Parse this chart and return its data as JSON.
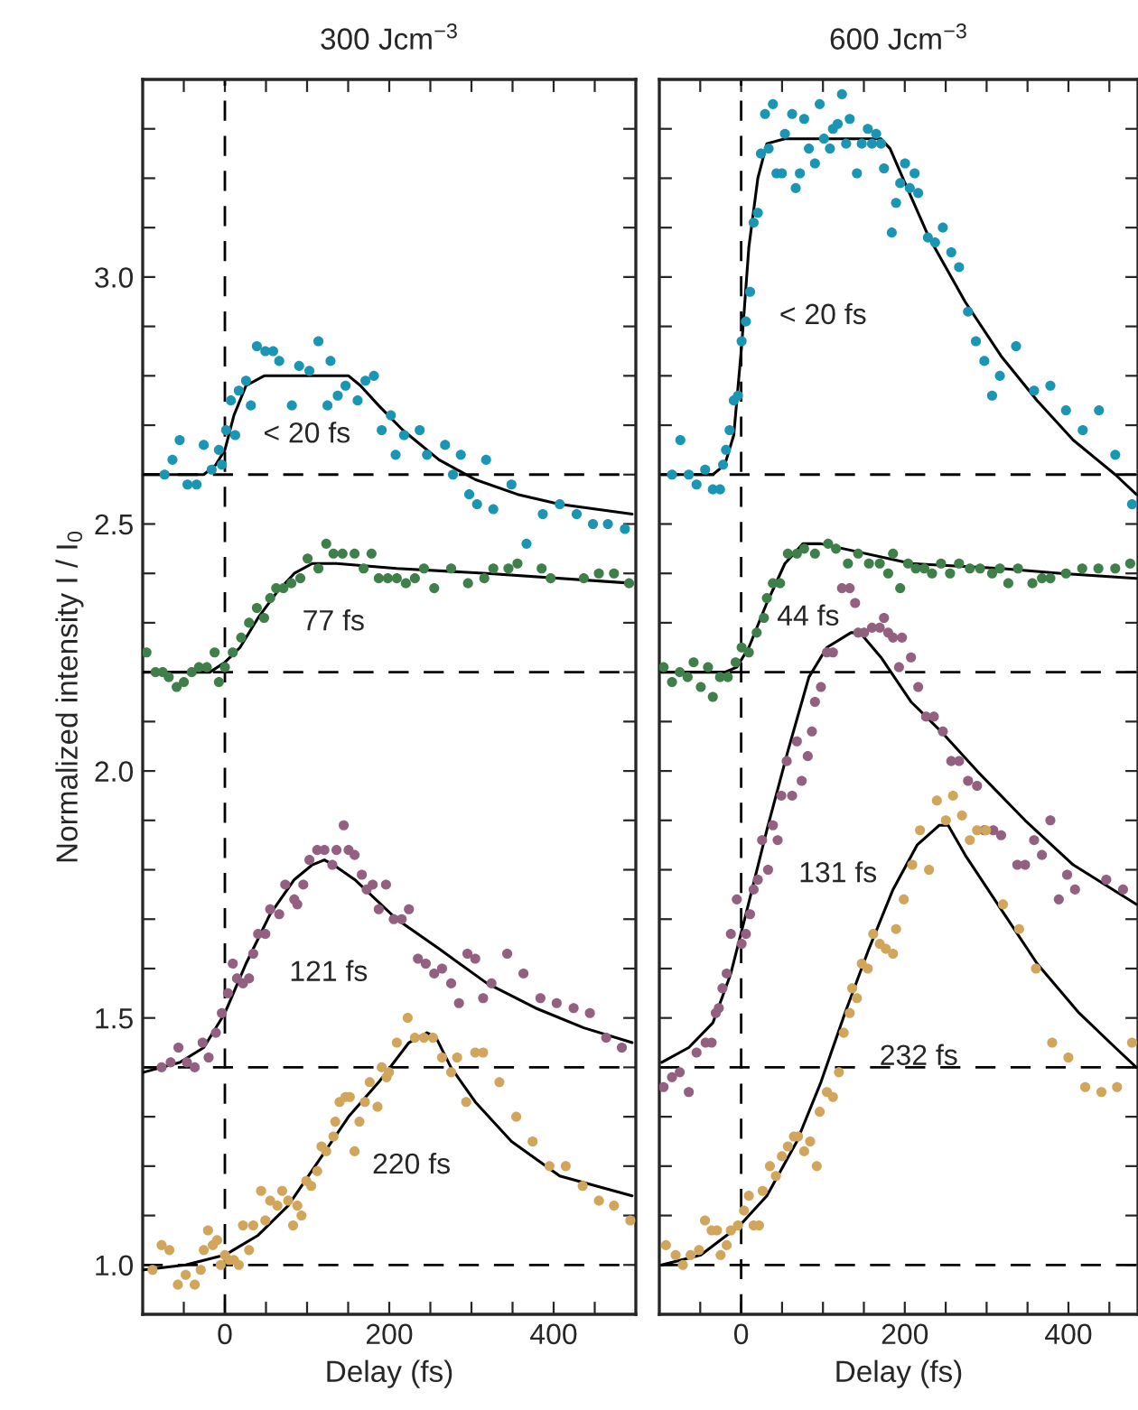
{
  "chart_data": [
    {
      "type": "scatter",
      "title": "300 Jcm$^{−3}$",
      "xlabel": "Delay (fs)",
      "ylabel": "Normalized intensity I / I$_{0}$",
      "marker": "circle",
      "grid": false,
      "legend": false,
      "xlim": [
        -100,
        500
      ],
      "ylim": [
        0.9,
        3.4
      ],
      "xticks": [
        {
          "value": -50,
          "label": null
        },
        0,
        {
          "value": 50,
          "label": null
        },
        {
          "value": 100,
          "label": null
        },
        {
          "value": 150,
          "label": null
        },
        200,
        {
          "value": 250,
          "label": null
        },
        {
          "value": 300,
          "label": null
        },
        {
          "value": 350,
          "label": null
        },
        400,
        {
          "value": 450,
          "label": null
        }
      ],
      "yticks": [
        {
          "value": 1.0,
          "label": "1.0"
        },
        {
          "value": 1.1,
          "label": null
        },
        {
          "value": 1.2,
          "label": null
        },
        {
          "value": 1.3,
          "label": null
        },
        {
          "value": 1.4,
          "label": null
        },
        {
          "value": 1.5,
          "label": "1.5"
        },
        {
          "value": 1.6,
          "label": null
        },
        {
          "value": 1.7,
          "label": null
        },
        {
          "value": 1.8,
          "label": null
        },
        {
          "value": 1.9,
          "label": null
        },
        {
          "value": 2.0,
          "label": "2.0"
        },
        {
          "value": 2.1,
          "label": null
        },
        {
          "value": 2.2,
          "label": null
        },
        {
          "value": 2.3,
          "label": null
        },
        {
          "value": 2.4,
          "label": null
        },
        {
          "value": 2.5,
          "label": "2.5"
        },
        {
          "value": 2.6,
          "label": null
        },
        {
          "value": 2.7,
          "label": null
        },
        {
          "value": 2.8,
          "label": null
        },
        {
          "value": 2.9,
          "label": null
        },
        {
          "value": 3.0,
          "label": "3.0"
        },
        {
          "value": 3.1,
          "label": null
        },
        {
          "value": 3.2,
          "label": null
        },
        {
          "value": 3.3,
          "label": null
        }
      ],
      "ref_lines": [
        {
          "axis": "x",
          "value": 0,
          "color": "#000000",
          "line_style": "dashed"
        },
        {
          "axis": "y",
          "value": 2.6,
          "color": "#000000",
          "line_style": "dashed"
        },
        {
          "axis": "y",
          "value": 2.2,
          "color": "#000000",
          "line_style": "dashed"
        },
        {
          "axis": "y",
          "value": 1.4,
          "color": "#000000",
          "line_style": "dashed"
        },
        {
          "axis": "y",
          "value": 1.0,
          "color": "#000000",
          "line_style": "dashed"
        }
      ],
      "annotations": [
        "< 20 fs",
        "77 fs",
        "121 fs",
        "220 fs"
      ],
      "series": [
        {
          "type": "scatter",
          "color": "#1a95b4",
          "x": [
            -73.4,
            -63.8,
            -55,
            -45.5,
            -34.5,
            -25.7,
            -16.1,
            -7.3,
            -3.7,
            1.5,
            7.3,
            12.5,
            16.9,
            25.7,
            31.6,
            38.9,
            49.2,
            58.7,
            66.1,
            81.5,
            90.3,
            102.8,
            113.8,
            124.8,
            128.5,
            137.3,
            146.8,
            161.5,
            171,
            181.3,
            190.8,
            201.9,
            207.7,
            218,
            237,
            245.9,
            267.9,
            277.5,
            287,
            297.3,
            306.8,
            317.8,
            326.6,
            348.7,
            367,
            386.8,
            407.4,
            428,
            447.8,
            466,
            486.7
          ],
          "values": [
            2.6,
            2.63,
            2.67,
            2.58,
            2.58,
            2.66,
            2.61,
            2.65,
            2.62,
            2.69,
            2.75,
            2.68,
            2.77,
            2.79,
            2.74,
            2.86,
            2.85,
            2.85,
            2.83,
            2.74,
            2.82,
            2.81,
            2.87,
            2.74,
            2.83,
            2.76,
            2.78,
            2.75,
            2.79,
            2.8,
            2.69,
            2.72,
            2.64,
            2.68,
            2.69,
            2.64,
            2.66,
            2.6,
            2.64,
            2.56,
            2.54,
            2.63,
            2.53,
            2.58,
            2.46,
            2.52,
            2.54,
            2.52,
            2.5,
            2.5,
            2.49
          ]
        },
        {
          "type": "line",
          "color": "#000000",
          "marker": "none",
          "x": [
            -100,
            -25.7,
            -11,
            0,
            11,
            25.7,
            47.7,
            99,
            150.5,
            165,
            187,
            216.5,
            260.6,
            304.6,
            356,
            407,
            495.5
          ],
          "values": [
            2.6,
            2.6,
            2.62,
            2.65,
            2.72,
            2.78,
            2.8,
            2.8,
            2.8,
            2.78,
            2.74,
            2.69,
            2.63,
            2.59,
            2.56,
            2.54,
            2.52
          ]
        },
        {
          "type": "scatter",
          "color": "#3f7f4a",
          "x": [
            -95.4,
            -84.4,
            -75.6,
            -68.3,
            -58.7,
            -49.9,
            -40.4,
            -31.6,
            -22,
            -12.5,
            -7.3,
            0,
            9.6,
            19.8,
            29.4,
            38.9,
            47.7,
            55.1,
            62.4,
            71.2,
            80.8,
            91.8,
            100.6,
            113.8,
            123.3,
            132.1,
            143.1,
            157.8,
            168.8,
            178.4,
            187.2,
            198.2,
            209.2,
            220.2,
            231.2,
            242.2,
            254.7,
            275.3,
            295.8,
            315.6,
            326.6,
            345,
            356,
            385.4,
            396.4,
            436.7,
            455,
            473.4,
            491.8
          ],
          "values": [
            2.24,
            2.2,
            2.2,
            2.19,
            2.17,
            2.18,
            2.2,
            2.21,
            2.21,
            2.24,
            2.18,
            2.21,
            2.24,
            2.27,
            2.3,
            2.33,
            2.31,
            2.35,
            2.37,
            2.37,
            2.38,
            2.39,
            2.43,
            2.41,
            2.46,
            2.44,
            2.44,
            2.44,
            2.41,
            2.44,
            2.39,
            2.39,
            2.39,
            2.38,
            2.39,
            2.41,
            2.37,
            2.41,
            2.38,
            2.39,
            2.41,
            2.41,
            2.42,
            2.41,
            2.39,
            2.39,
            2.4,
            2.4,
            2.38
          ]
        },
        {
          "type": "line",
          "color": "#000000",
          "marker": "none",
          "x": [
            -100,
            -18.3,
            0,
            18.4,
            40.4,
            62.4,
            84.4,
            106.4,
            135.8,
            209,
            319,
            495.5
          ],
          "values": [
            2.2,
            2.2,
            2.22,
            2.25,
            2.31,
            2.36,
            2.4,
            2.42,
            2.42,
            2.41,
            2.4,
            2.38
          ]
        },
        {
          "type": "scatter",
          "color": "#93607f",
          "x": [
            -77,
            -66,
            -56.5,
            -46.2,
            -36.7,
            -27.1,
            -19.8,
            -11,
            -3.7,
            3.7,
            9.6,
            14.7,
            22,
            29.4,
            34.5,
            40.4,
            49.2,
            55.1,
            66.1,
            73.4,
            84.4,
            88.1,
            95.4,
            102.8,
            112.3,
            121.1,
            130.7,
            135.8,
            144.6,
            150.5,
            157.8,
            166.6,
            172.5,
            179.8,
            187.2,
            196,
            205.5,
            215.1,
            223.9,
            234.9,
            244.4,
            254.7,
            264.2,
            275.3,
            284.8,
            295.1,
            304.6,
            314.2,
            324.4,
            343.5,
            363.3,
            383.9,
            403.7,
            424.3,
            444.1,
            463.9,
            483
          ],
          "values": [
            1.4,
            1.41,
            1.44,
            1.41,
            1.4,
            1.45,
            1.42,
            1.47,
            1.51,
            1.55,
            1.61,
            1.58,
            1.57,
            1.58,
            1.63,
            1.67,
            1.67,
            1.72,
            1.71,
            1.77,
            1.74,
            1.73,
            1.77,
            1.82,
            1.84,
            1.84,
            1.81,
            1.84,
            1.89,
            1.84,
            1.83,
            1.79,
            1.76,
            1.77,
            1.72,
            1.77,
            1.7,
            1.7,
            1.72,
            1.62,
            1.61,
            1.59,
            1.6,
            1.57,
            1.53,
            1.63,
            1.62,
            1.54,
            1.57,
            1.63,
            1.59,
            1.54,
            1.53,
            1.52,
            1.51,
            1.46,
            1.44
          ]
        },
        {
          "type": "line",
          "color": "#000000",
          "marker": "none",
          "x": [
            -99,
            -55,
            -25.7,
            0,
            25.7,
            55,
            84.4,
            106.4,
            121,
            132,
            158,
            209,
            260.6,
            319,
            378,
            436.7,
            495.5
          ],
          "values": [
            1.39,
            1.41,
            1.44,
            1.51,
            1.61,
            1.71,
            1.78,
            1.81,
            1.82,
            1.81,
            1.78,
            1.7,
            1.64,
            1.57,
            1.52,
            1.48,
            1.45
          ]
        },
        {
          "type": "scatter",
          "color": "#d1a65c",
          "x": [
            -88,
            -77,
            -67.5,
            -57.2,
            -47.7,
            -36.7,
            -29.4,
            -25.7,
            -20.5,
            -14.7,
            -9.5,
            -5.1,
            0,
            5.1,
            11,
            16.9,
            22,
            29.4,
            34.5,
            44,
            49.2,
            55.1,
            63.9,
            69.7,
            77,
            83,
            88.1,
            93.2,
            99,
            105,
            112.3,
            117.5,
            123.3,
            132.1,
            134.3,
            139.5,
            146.8,
            152,
            157.8,
            163.7,
            170.3,
            176.2,
            185.7,
            190.8,
            196.7,
            199.7,
            209.2,
            222.4,
            231.2,
            242.2,
            253.2,
            264.2,
            275.3,
            282.6,
            293.6,
            304.6,
            314.2,
            334,
            354.5,
            374.4,
            394.9,
            414.7,
            435.3,
            455.1,
            473.4,
            493.3
          ],
          "values": [
            0.99,
            1.04,
            1.03,
            0.96,
            0.98,
            0.96,
            0.99,
            1.03,
            1.07,
            1.04,
            1.05,
            1.0,
            1.02,
            1.01,
            1.01,
            1.0,
            1.08,
            1.03,
            1.08,
            1.15,
            1.09,
            1.13,
            1.12,
            1.15,
            1.13,
            1.08,
            1.12,
            1.1,
            1.17,
            1.16,
            1.19,
            1.24,
            1.23,
            1.26,
            1.29,
            1.33,
            1.34,
            1.34,
            1.23,
            1.29,
            1.33,
            1.37,
            1.32,
            1.4,
            1.38,
            1.39,
            1.45,
            1.5,
            1.46,
            1.46,
            1.46,
            1.42,
            1.39,
            1.42,
            1.33,
            1.43,
            1.43,
            1.37,
            1.3,
            1.25,
            1.2,
            1.2,
            1.16,
            1.13,
            1.12,
            1.09
          ]
        },
        {
          "type": "line",
          "color": "#000000",
          "marker": "none",
          "x": [
            -99,
            -47.7,
            0,
            40.4,
            77,
            113.8,
            150.5,
            187.2,
            223.9,
            245.9,
            257,
            275,
            304.6,
            348.7,
            407.4,
            495.5
          ],
          "values": [
            0.99,
            1.0,
            1.02,
            1.06,
            1.12,
            1.21,
            1.3,
            1.37,
            1.45,
            1.47,
            1.46,
            1.4,
            1.33,
            1.25,
            1.18,
            1.14
          ]
        }
      ]
    },
    {
      "type": "scatter",
      "title": "600 Jcm$^{−3}$",
      "xlabel": "Delay (fs)",
      "marker": "circle",
      "grid": false,
      "legend": false,
      "tick_labels": "x",
      "xlim": [
        -100,
        485
      ],
      "ylim": [
        0.9,
        3.4
      ],
      "xticks": [
        {
          "value": -50,
          "label": null
        },
        0,
        {
          "value": 50,
          "label": null
        },
        {
          "value": 100,
          "label": null
        },
        {
          "value": 150,
          "label": null
        },
        200,
        {
          "value": 250,
          "label": null
        },
        {
          "value": 300,
          "label": null
        },
        {
          "value": 350,
          "label": null
        },
        400,
        {
          "value": 450,
          "label": null
        }
      ],
      "yticks": [
        {
          "value": 1.0,
          "label": null
        },
        {
          "value": 1.1,
          "label": null
        },
        {
          "value": 1.2,
          "label": null
        },
        {
          "value": 1.3,
          "label": null
        },
        {
          "value": 1.4,
          "label": null
        },
        {
          "value": 1.5,
          "label": null
        },
        {
          "value": 1.6,
          "label": null
        },
        {
          "value": 1.7,
          "label": null
        },
        {
          "value": 1.8,
          "label": null
        },
        {
          "value": 1.9,
          "label": null
        },
        {
          "value": 2.0,
          "label": null
        },
        {
          "value": 2.1,
          "label": null
        },
        {
          "value": 2.2,
          "label": null
        },
        {
          "value": 2.3,
          "label": null
        },
        {
          "value": 2.4,
          "label": null
        },
        {
          "value": 2.5,
          "label": null
        },
        {
          "value": 2.6,
          "label": null
        },
        {
          "value": 2.7,
          "label": null
        },
        {
          "value": 2.8,
          "label": null
        },
        {
          "value": 2.9,
          "label": null
        },
        {
          "value": 3.0,
          "label": null
        },
        {
          "value": 3.1,
          "label": null
        },
        {
          "value": 3.2,
          "label": null
        },
        {
          "value": 3.3,
          "label": null
        }
      ],
      "ref_lines": [
        {
          "axis": "x",
          "value": 0,
          "color": "#000000",
          "line_style": "dashed"
        },
        {
          "axis": "y",
          "value": 2.6,
          "color": "#000000",
          "line_style": "dashed"
        },
        {
          "axis": "y",
          "value": 2.2,
          "color": "#000000",
          "line_style": "dashed"
        },
        {
          "axis": "y",
          "value": 1.4,
          "color": "#000000",
          "line_style": "dashed"
        },
        {
          "axis": "y",
          "value": 1.0,
          "color": "#000000",
          "line_style": "dashed"
        }
      ],
      "annotations": [
        "< 20 fs",
        "44 fs",
        "131 fs",
        "232 fs"
      ],
      "series": [
        {
          "type": "scatter",
          "color": "#1a95b4",
          "x": [
            -84.5,
            -74.3,
            -64,
            -54.5,
            -44,
            -34.6,
            -25.8,
            -22.1,
            -18.5,
            -14.1,
            -9,
            -3.8,
            0.6,
            5.8,
            10.9,
            15.3,
            20.4,
            24.1,
            29.2,
            33.6,
            38.8,
            43.2,
            49.8,
            53.5,
            62.3,
            66.7,
            71.8,
            77,
            82.8,
            90.2,
            96,
            101.2,
            108.5,
            112.2,
            118,
            123.2,
            128.3,
            132.7,
            141.5,
            147.4,
            154.8,
            159.9,
            165,
            170.9,
            174.6,
            184.1,
            189.3,
            194.4,
            200.3,
            206.1,
            212,
            216.4,
            228.2,
            237,
            246.5,
            256.8,
            266.3,
            277.3,
            286.9,
            297.2,
            306.7,
            316.2,
            336,
            358,
            377.9,
            397,
            417.5,
            437.3,
            457.2,
            477.7
          ],
          "values": [
            2.6,
            2.67,
            2.6,
            2.58,
            2.61,
            2.57,
            2.57,
            2.62,
            2.65,
            2.69,
            2.75,
            2.76,
            2.87,
            2.91,
            2.97,
            3.11,
            3.13,
            3.25,
            3.33,
            3.26,
            3.35,
            3.21,
            3.21,
            3.29,
            3.33,
            3.18,
            3.21,
            3.32,
            3.26,
            3.23,
            3.35,
            3.28,
            3.26,
            3.3,
            3.31,
            3.37,
            3.27,
            3.32,
            3.21,
            3.27,
            3.3,
            3.27,
            3.29,
            3.27,
            3.22,
            3.09,
            3.15,
            3.19,
            3.23,
            3.18,
            3.21,
            3.17,
            3.08,
            3.07,
            3.1,
            3.05,
            3.02,
            2.93,
            2.87,
            2.83,
            2.76,
            2.8,
            2.86,
            2.77,
            2.78,
            2.73,
            2.69,
            2.73,
            2.64,
            2.54
          ]
        },
        {
          "type": "line",
          "color": "#000000",
          "marker": "none",
          "x": [
            -97,
            -34.6,
            -20,
            -9,
            0.6,
            9.4,
            20.4,
            31.4,
            53.5,
            171,
            182,
            200.3,
            229.6,
            273.7,
            317.7,
            361.7,
            405.8,
            457.2,
            482.9
          ],
          "values": [
            2.6,
            2.6,
            2.62,
            2.68,
            2.86,
            3.06,
            3.2,
            3.27,
            3.28,
            3.28,
            3.26,
            3.19,
            3.08,
            2.95,
            2.84,
            2.75,
            2.67,
            2.6,
            2.56
          ]
        },
        {
          "type": "scatter",
          "color": "#3f7f4a",
          "x": [
            -94.8,
            -84.5,
            -75,
            -65.4,
            -58.1,
            -49.3,
            -40.5,
            -34.6,
            -25.8,
            -16.3,
            -6.7,
            0.6,
            9.4,
            19,
            27.8,
            31.4,
            38.8,
            47.6,
            57.1,
            68.1,
            77,
            90.2,
            106.3,
            115.9,
            130.5,
            143,
            156.2,
            169.4,
            179.7,
            185.6,
            194.4,
            204,
            213.5,
            223.8,
            233.3,
            244.3,
            255.3,
            266.3,
            279.5,
            292,
            306.7,
            316.2,
            326.5,
            338.3,
            355.9,
            367.6,
            377.9,
            397,
            416.8,
            436.6,
            457.2,
            475.5
          ],
          "values": [
            2.21,
            2.18,
            2.2,
            2.19,
            2.22,
            2.17,
            2.21,
            2.15,
            2.19,
            2.19,
            2.22,
            2.25,
            2.24,
            2.28,
            2.31,
            2.35,
            2.38,
            2.38,
            2.44,
            2.44,
            2.45,
            2.44,
            2.46,
            2.45,
            2.42,
            2.44,
            2.42,
            2.42,
            2.4,
            2.44,
            2.37,
            2.42,
            2.41,
            2.41,
            2.4,
            2.42,
            2.4,
            2.42,
            2.41,
            2.41,
            2.4,
            2.41,
            2.38,
            2.41,
            2.38,
            2.39,
            2.39,
            2.4,
            2.41,
            2.41,
            2.41,
            2.42
          ]
        },
        {
          "type": "line",
          "color": "#000000",
          "marker": "none",
          "x": [
            -97,
            -20,
            -5.3,
            9.4,
            31.4,
            53.5,
            75.5,
            97.5,
            207.6,
            317.7,
            391,
            482.9
          ],
          "values": [
            2.2,
            2.2,
            2.21,
            2.25,
            2.34,
            2.42,
            2.46,
            2.46,
            2.42,
            2.41,
            2.4,
            2.39
          ]
        },
        {
          "type": "scatter",
          "color": "#93607f",
          "x": [
            -94.8,
            -84.5,
            -75,
            -64,
            -54.5,
            -43.4,
            -36.1,
            -31,
            -27.3,
            -22.9,
            -17.7,
            -12.6,
            -5.3,
            0.6,
            5.8,
            10.9,
            15.3,
            20.4,
            25.6,
            32.9,
            38.8,
            44.6,
            49.1,
            55.7,
            62.3,
            68.1,
            74,
            81.4,
            86.5,
            90.2,
            97.5,
            104.8,
            112.2,
            123.2,
            132.7,
            139.3,
            143,
            150.3,
            159.9,
            169.4,
            174.6,
            179.7,
            185.6,
            192.9,
            196.6,
            207.6,
            216.4,
            226,
            235.5,
            246.5,
            256.8,
            266.3,
            277.3,
            288.3,
            297.2,
            308.2,
            317.7,
            337.5,
            347,
            358,
            367.6,
            377.9,
            388.2,
            398.4,
            408,
            446.2,
            466.7
          ],
          "values": [
            1.36,
            1.38,
            1.39,
            1.35,
            1.43,
            1.45,
            1.45,
            1.51,
            1.52,
            1.56,
            1.59,
            1.67,
            1.74,
            1.65,
            1.67,
            1.71,
            1.76,
            1.78,
            1.86,
            1.8,
            1.89,
            1.86,
            1.95,
            2.02,
            1.95,
            2.06,
            1.98,
            2.03,
            2.08,
            2.14,
            2.17,
            2.24,
            2.24,
            2.37,
            2.37,
            2.34,
            2.28,
            2.28,
            2.29,
            2.29,
            2.31,
            2.28,
            2.27,
            2.21,
            2.27,
            2.23,
            2.17,
            2.11,
            2.11,
            2.08,
            2.02,
            2.02,
            1.98,
            1.97,
            1.88,
            1.88,
            1.87,
            1.81,
            1.81,
            1.86,
            1.83,
            1.9,
            1.74,
            1.79,
            1.76,
            1.78,
            1.76
          ]
        },
        {
          "type": "line",
          "color": "#000000",
          "marker": "none",
          "x": [
            -97,
            -64,
            -34.6,
            -12.6,
            5.8,
            31.4,
            57.1,
            82.8,
            104.8,
            134.2,
            145.2,
            170.9,
            207.6,
            244.3,
            288.3,
            347,
            405.8,
            482.9
          ],
          "values": [
            1.41,
            1.44,
            1.49,
            1.59,
            1.71,
            1.88,
            2.04,
            2.19,
            2.25,
            2.28,
            2.28,
            2.23,
            2.14,
            2.08,
            2.0,
            1.9,
            1.81,
            1.73
          ]
        },
        {
          "type": "scatter",
          "color": "#d1a65c",
          "x": [
            -91.9,
            -80.1,
            -71.3,
            -61.8,
            -51.5,
            -44.2,
            -36.1,
            -29.5,
            -25.1,
            -17.7,
            -12.6,
            -3.8,
            3.5,
            9.4,
            15.3,
            21.9,
            26.3,
            35.1,
            42.5,
            49.8,
            57.1,
            64.5,
            69.6,
            77,
            84.3,
            92.4,
            96,
            104.8,
            112.2,
            119.5,
            125.4,
            132.7,
            135.7,
            141.5,
            147.4,
            154.8,
            161.4,
            169.4,
            176.8,
            185.6,
            189.3,
            198.8,
            209.1,
            218.6,
            229.6,
            239.2,
            250.2,
            258.9,
            269.9,
            279.5,
            288.3,
            299.3,
            320,
            339.7,
            360.3,
            380.1,
            399.9,
            420.5,
            440.3,
            459.4,
            477.7
          ],
          "values": [
            1.04,
            1.02,
            1.0,
            1.02,
            1.03,
            1.09,
            1.07,
            1.07,
            1.02,
            1.04,
            1.07,
            1.08,
            1.11,
            1.14,
            1.08,
            1.08,
            1.15,
            1.2,
            1.18,
            1.22,
            1.24,
            1.26,
            1.26,
            1.23,
            1.25,
            1.2,
            1.31,
            1.35,
            1.34,
            1.39,
            1.47,
            1.51,
            1.56,
            1.54,
            1.61,
            1.6,
            1.67,
            1.65,
            1.64,
            1.63,
            1.68,
            1.74,
            1.81,
            1.88,
            1.8,
            1.94,
            1.9,
            1.95,
            1.91,
            1.86,
            1.88,
            1.88,
            1.73,
            1.68,
            1.6,
            1.45,
            1.42,
            1.36,
            1.35,
            1.36,
            1.45
          ]
        },
        {
          "type": "line",
          "color": "#000000",
          "marker": "none",
          "x": [
            -97,
            -49.3,
            -1.6,
            31.4,
            68.1,
            97.5,
            126.9,
            156.2,
            185.6,
            215,
            242,
            253,
            273.7,
            317.7,
            361.7,
            413,
            457.2,
            482.9
          ],
          "values": [
            1.0,
            1.02,
            1.08,
            1.14,
            1.25,
            1.37,
            1.51,
            1.64,
            1.76,
            1.85,
            1.89,
            1.89,
            1.83,
            1.72,
            1.61,
            1.51,
            1.44,
            1.4
          ]
        }
      ]
    }
  ]
}
